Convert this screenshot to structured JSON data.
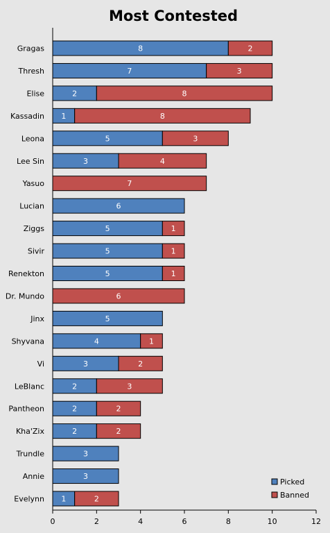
{
  "chart_data": {
    "type": "bar",
    "orientation": "horizontal",
    "stacked": true,
    "title": "Most Contested",
    "xlabel": "",
    "ylabel": "",
    "xlim": [
      0,
      12
    ],
    "x_ticks": [
      0,
      2,
      4,
      6,
      8,
      10,
      12
    ],
    "grid": false,
    "legend_position": "bottom-right",
    "categories": [
      "Gragas",
      "Thresh",
      "Elise",
      "Kassadin",
      "Leona",
      "Lee Sin",
      "Yasuo",
      "Lucian",
      "Ziggs",
      "Sivir",
      "Renekton",
      "Dr. Mundo",
      "Jinx",
      "Shyvana",
      "Vi",
      "LeBlanc",
      "Pantheon",
      "Kha'Zix",
      "Trundle",
      "Annie",
      "Evelynn"
    ],
    "series": [
      {
        "name": "Picked",
        "color": "#4f81bd",
        "values": [
          8,
          7,
          2,
          1,
          5,
          3,
          0,
          6,
          5,
          5,
          5,
          0,
          5,
          4,
          3,
          2,
          2,
          2,
          3,
          3,
          1
        ]
      },
      {
        "name": "Banned",
        "color": "#c0504d",
        "values": [
          2,
          3,
          8,
          8,
          3,
          4,
          7,
          0,
          1,
          1,
          1,
          6,
          0,
          1,
          2,
          3,
          2,
          2,
          0,
          0,
          2
        ]
      }
    ]
  }
}
